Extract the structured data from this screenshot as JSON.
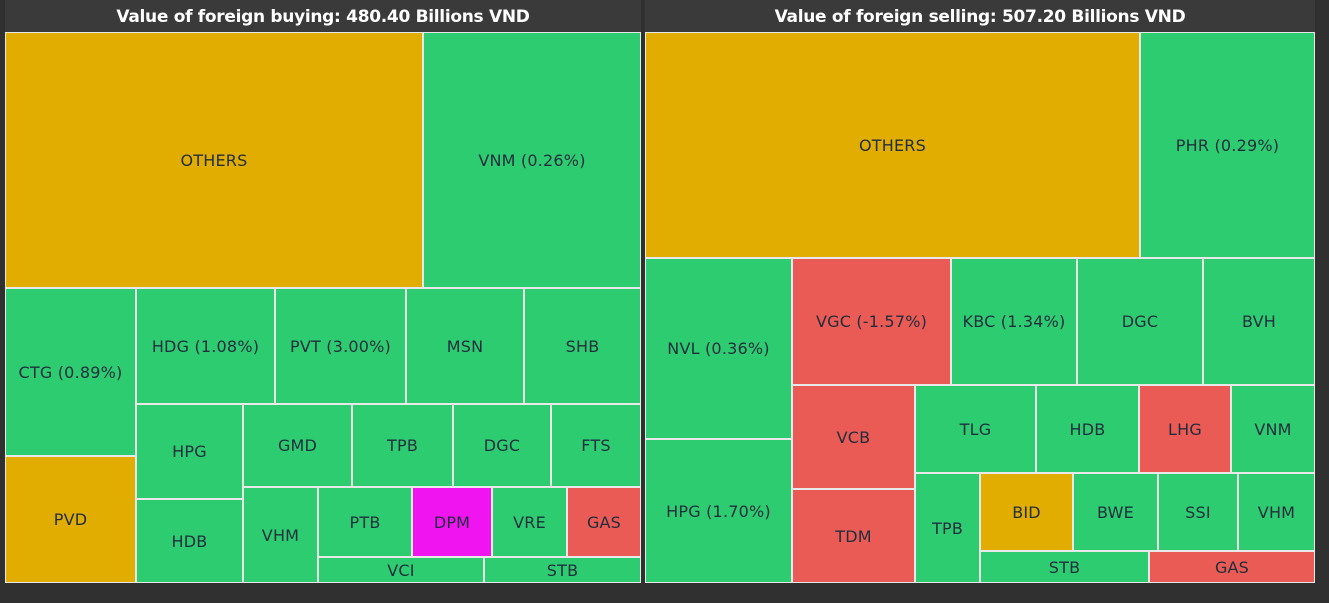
{
  "colors": {
    "green": "#2ecc71",
    "yellow": "#e0ad00",
    "red": "#eb5b55",
    "magenta": "#f014f0"
  },
  "chart_data": [
    {
      "type": "treemap",
      "title": "Value of foreign buying: 480.40 Billions VND",
      "cells": [
        {
          "label": "OTHERS",
          "color": "yellow"
        },
        {
          "label": "VNM (0.26%)",
          "color": "green"
        },
        {
          "label": "CTG (0.89%)",
          "color": "green"
        },
        {
          "label": "PVD",
          "color": "yellow"
        },
        {
          "label": "HDG (1.08%)",
          "color": "green"
        },
        {
          "label": "PVT (3.00%)",
          "color": "green"
        },
        {
          "label": "MSN",
          "color": "green"
        },
        {
          "label": "SHB",
          "color": "green"
        },
        {
          "label": "HPG",
          "color": "green"
        },
        {
          "label": "HDB",
          "color": "green"
        },
        {
          "label": "GMD",
          "color": "green"
        },
        {
          "label": "TPB",
          "color": "green"
        },
        {
          "label": "DGC",
          "color": "green"
        },
        {
          "label": "FTS",
          "color": "green"
        },
        {
          "label": "VHM",
          "color": "green"
        },
        {
          "label": "PTB",
          "color": "green"
        },
        {
          "label": "DPM",
          "color": "magenta"
        },
        {
          "label": "VRE",
          "color": "green"
        },
        {
          "label": "GAS",
          "color": "red"
        },
        {
          "label": "VCI",
          "color": "green"
        },
        {
          "label": "STB",
          "color": "green"
        }
      ]
    },
    {
      "type": "treemap",
      "title": "Value of foreign selling: 507.20 Billions VND",
      "cells": [
        {
          "label": "OTHERS",
          "color": "yellow"
        },
        {
          "label": "PHR (0.29%)",
          "color": "green"
        },
        {
          "label": "NVL (0.36%)",
          "color": "green"
        },
        {
          "label": "HPG (1.70%)",
          "color": "green"
        },
        {
          "label": "VGC (-1.57%)",
          "color": "red"
        },
        {
          "label": "KBC (1.34%)",
          "color": "green"
        },
        {
          "label": "DGC",
          "color": "green"
        },
        {
          "label": "BVH",
          "color": "green"
        },
        {
          "label": "VCB",
          "color": "red"
        },
        {
          "label": "TDM",
          "color": "red"
        },
        {
          "label": "TLG",
          "color": "green"
        },
        {
          "label": "HDB",
          "color": "green"
        },
        {
          "label": "LHG",
          "color": "red"
        },
        {
          "label": "VNM",
          "color": "green"
        },
        {
          "label": "TPB",
          "color": "green"
        },
        {
          "label": "BID",
          "color": "yellow"
        },
        {
          "label": "BWE",
          "color": "green"
        },
        {
          "label": "SSI",
          "color": "green"
        },
        {
          "label": "VHM",
          "color": "green"
        },
        {
          "label": "STB",
          "color": "green"
        },
        {
          "label": "GAS",
          "color": "red"
        }
      ]
    }
  ]
}
